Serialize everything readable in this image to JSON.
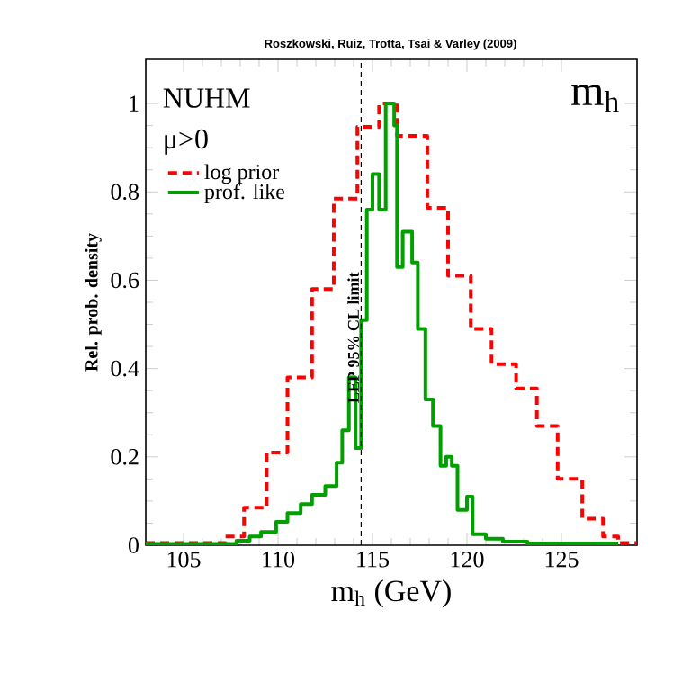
{
  "chart_data": {
    "type": "step",
    "title": "Roszkowski, Ruiz, Trotta, Tsai & Varley (2009)",
    "xlabel": "m$_{h}$ (GeV)",
    "ylabel": "Rel. prob. density",
    "annotations": [
      "NUHM",
      "μ>0",
      "m$_{h}$"
    ],
    "xlim": [
      103,
      129
    ],
    "ylim": [
      0,
      1.1
    ],
    "xticks": [
      105,
      110,
      115,
      120,
      125
    ],
    "yticks": [
      0,
      0.2,
      0.4,
      0.6,
      0.8,
      1
    ],
    "ref_lines": [
      {
        "axis": "x",
        "value": 114.4,
        "label": "LEP 95% CL limit",
        "color": "#000000",
        "line_style": "dashed"
      }
    ],
    "legend": "top left",
    "series": [
      {
        "name": "log prior",
        "color": "#ff0000",
        "line_style": "dashed",
        "x": [
          103,
          107.2,
          108.2,
          109.4,
          110.5,
          111.8,
          112.95,
          114.2,
          115.35,
          116.3,
          117.9,
          119.0,
          120.2,
          121.3,
          122.6,
          123.7,
          124.8,
          126.1,
          127.2,
          128.0,
          129
        ],
        "values": [
          0.005,
          0.02,
          0.085,
          0.21,
          0.38,
          0.58,
          0.785,
          0.947,
          1.0,
          0.927,
          0.764,
          0.61,
          0.49,
          0.41,
          0.355,
          0.27,
          0.15,
          0.06,
          0.02,
          0.005,
          0.005
        ]
      },
      {
        "name": "prof. like",
        "color": "#00a000",
        "line_style": "solid",
        "x": [
          103,
          107.8,
          108.5,
          109.1,
          109.9,
          110.5,
          111.2,
          111.8,
          112.5,
          113.1,
          113.4,
          113.75,
          114.1,
          114.4,
          114.7,
          115.0,
          115.35,
          115.7,
          116.15,
          116.3,
          116.6,
          117.1,
          117.4,
          117.8,
          118.2,
          118.6,
          118.9,
          119.2,
          119.5,
          120.0,
          120.3,
          121.0,
          121.9,
          123.2,
          128.0
        ],
        "values": [
          0.003,
          0.01,
          0.02,
          0.03,
          0.053,
          0.073,
          0.093,
          0.114,
          0.134,
          0.187,
          0.26,
          0.38,
          0.22,
          0.51,
          0.76,
          0.84,
          0.76,
          1.0,
          0.95,
          0.63,
          0.71,
          0.64,
          0.49,
          0.33,
          0.27,
          0.18,
          0.2,
          0.18,
          0.08,
          0.11,
          0.025,
          0.015,
          0.008,
          0.004,
          0.004
        ]
      }
    ]
  }
}
